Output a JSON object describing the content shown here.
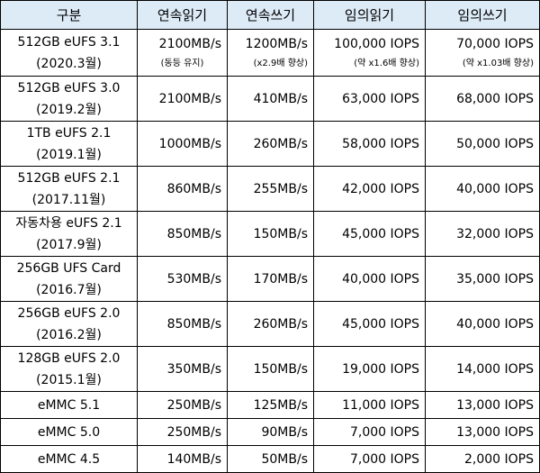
{
  "table": {
    "header": [
      "구분",
      "연속읽기",
      "연속쓰기",
      "임의읽기",
      "임의쓰기"
    ],
    "rows": [
      {
        "name": "512GB eUFS 3.1",
        "date": "(2020.3월)",
        "values": [
          "2100MB/s",
          "1200MB/s",
          "100,000 IOPS",
          "70,000 IOPS"
        ],
        "notes": [
          "(동등 유지)",
          "(x2.9배 향상)",
          "(약 x1.6배 향상)",
          "(약 x1.03배 향상)"
        ]
      },
      {
        "name": "512GB eUFS 3.0",
        "date": "(2019.2월)",
        "values": [
          "2100MB/s",
          "410MB/s",
          "63,000 IOPS",
          "68,000 IOPS"
        ]
      },
      {
        "name": "1TB eUFS 2.1",
        "date": "(2019.1월)",
        "values": [
          "1000MB/s",
          "260MB/s",
          "58,000 IOPS",
          "50,000 IOPS"
        ]
      },
      {
        "name": "512GB eUFS 2.1",
        "date": "(2017.11월)",
        "values": [
          "860MB/s",
          "255MB/s",
          "42,000 IOPS",
          "40,000 IOPS"
        ]
      },
      {
        "name": "자동차용 eUFS 2.1",
        "date": "(2017.9월)",
        "values": [
          "850MB/s",
          "150MB/s",
          "45,000 IOPS",
          "32,000 IOPS"
        ]
      },
      {
        "name": "256GB UFS Card",
        "date": "(2016.7월)",
        "values": [
          "530MB/s",
          "170MB/s",
          "40,000 IOPS",
          "35,000 IOPS"
        ]
      },
      {
        "name": "256GB eUFS 2.0",
        "date": "(2016.2월)",
        "values": [
          "850MB/s",
          "260MB/s",
          "45,000 IOPS",
          "40,000 IOPS"
        ]
      },
      {
        "name": "128GB eUFS 2.0",
        "date": "(2015.1월)",
        "values": [
          "350MB/s",
          "150MB/s",
          "19,000 IOPS",
          "14,000 IOPS"
        ]
      },
      {
        "name": "eMMC 5.1",
        "values": [
          "250MB/s",
          "125MB/s",
          "11,000 IOPS",
          "13,000 IOPS"
        ]
      },
      {
        "name": "eMMC 5.0",
        "values": [
          "250MB/s",
          "90MB/s",
          "7,000 IOPS",
          "13,000 IOPS"
        ]
      },
      {
        "name": "eMMC 4.5",
        "values": [
          "140MB/s",
          "50MB/s",
          "7,000 IOPS",
          "2,000 IOPS"
        ]
      }
    ]
  }
}
